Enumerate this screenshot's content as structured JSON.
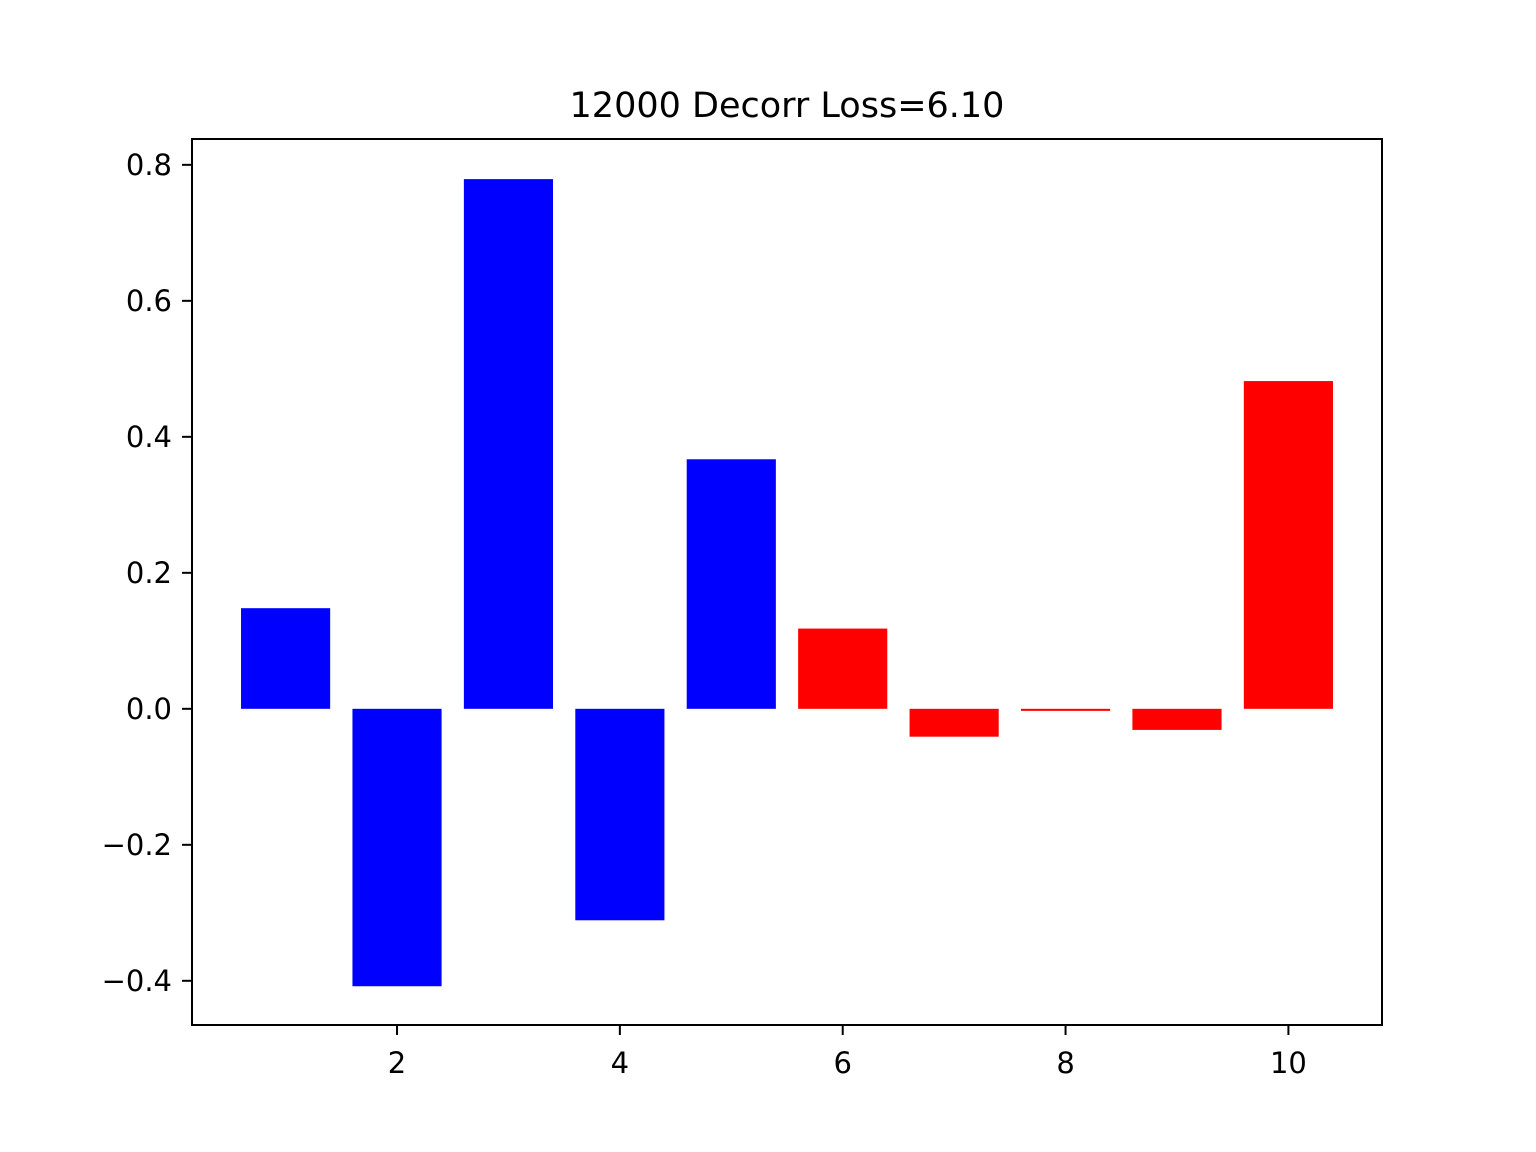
{
  "chart_data": {
    "type": "bar",
    "title": "12000 Decorr Loss=6.10",
    "xlabel": "",
    "ylabel": "",
    "x": [
      1,
      2,
      3,
      4,
      5,
      6,
      7,
      8,
      9,
      10
    ],
    "values": [
      0.148,
      -0.408,
      0.779,
      -0.311,
      0.367,
      0.118,
      -0.041,
      -0.003,
      -0.031,
      0.482
    ],
    "bar_colors": [
      "#0000ff",
      "#0000ff",
      "#0000ff",
      "#0000ff",
      "#0000ff",
      "#ff0000",
      "#ff0000",
      "#ff0000",
      "#ff0000",
      "#ff0000"
    ],
    "xlim": [
      0.16,
      10.84
    ],
    "ylim": [
      -0.465,
      0.838
    ],
    "x_ticks": [
      2,
      4,
      6,
      8,
      10
    ],
    "x_tick_labels": [
      "2",
      "4",
      "6",
      "8",
      "10"
    ],
    "y_ticks": [
      -0.4,
      -0.2,
      0.0,
      0.2,
      0.4,
      0.6,
      0.8
    ],
    "y_tick_labels": [
      "−0.4",
      "−0.2",
      "0.0",
      "0.2",
      "0.4",
      "0.6",
      "0.8"
    ],
    "grid": false,
    "legend": "none"
  }
}
